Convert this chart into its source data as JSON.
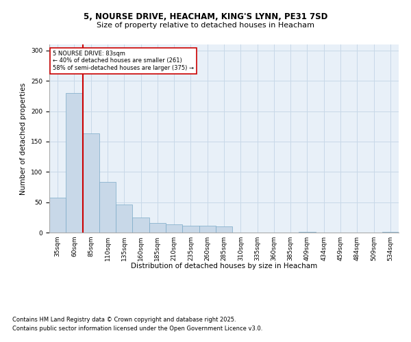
{
  "title_line1": "5, NOURSE DRIVE, HEACHAM, KING'S LYNN, PE31 7SD",
  "title_line2": "Size of property relative to detached houses in Heacham",
  "xlabel": "Distribution of detached houses by size in Heacham",
  "ylabel": "Number of detached properties",
  "footnote_line1": "Contains HM Land Registry data © Crown copyright and database right 2025.",
  "footnote_line2": "Contains public sector information licensed under the Open Government Licence v3.0.",
  "bin_labels": [
    "35sqm",
    "60sqm",
    "85sqm",
    "110sqm",
    "135sqm",
    "160sqm",
    "185sqm",
    "210sqm",
    "235sqm",
    "260sqm",
    "285sqm",
    "310sqm",
    "335sqm",
    "360sqm",
    "385sqm",
    "409sqm",
    "434sqm",
    "459sqm",
    "484sqm",
    "509sqm",
    "534sqm"
  ],
  "bar_values": [
    58,
    230,
    163,
    83,
    46,
    25,
    16,
    14,
    11,
    11,
    10,
    0,
    0,
    0,
    0,
    1,
    0,
    0,
    0,
    0,
    1
  ],
  "bar_color": "#c8d8e8",
  "bar_edge_color": "#7aaac8",
  "grid_color": "#c8d8e8",
  "background_color": "#e8f0f8",
  "vline_color": "#cc0000",
  "annotation_text": "5 NOURSE DRIVE: 83sqm\n← 40% of detached houses are smaller (261)\n58% of semi-detached houses are larger (375) →",
  "annotation_box_color": "#cc0000",
  "ylim": [
    0,
    310
  ],
  "yticks": [
    0,
    50,
    100,
    150,
    200,
    250,
    300
  ],
  "fig_width": 6.0,
  "fig_height": 5.0,
  "title1_fontsize": 8.5,
  "title2_fontsize": 8.0,
  "tick_fontsize": 6.5,
  "label_fontsize": 7.5,
  "footnote_fontsize": 6.0
}
